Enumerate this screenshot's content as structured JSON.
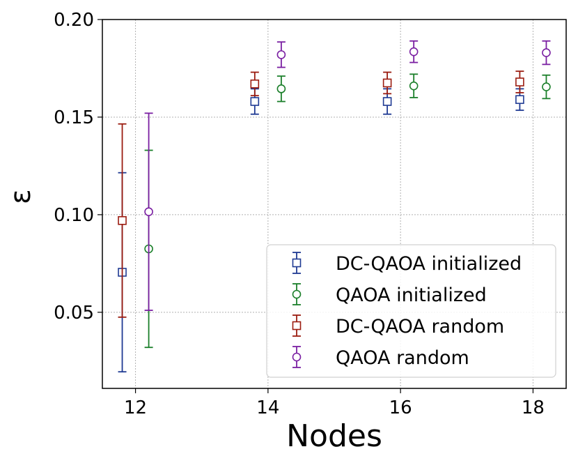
{
  "chart_data": {
    "type": "scatter",
    "title": "",
    "xlabel": "Nodes",
    "ylabel": "ε",
    "xlim": [
      11.5,
      18.5
    ],
    "ylim": [
      0.011,
      0.2
    ],
    "xticks": [
      12,
      14,
      16,
      18
    ],
    "yticks": [
      0.05,
      0.1,
      0.15,
      0.2
    ],
    "xtick_labels": [
      "12",
      "14",
      "16",
      "18"
    ],
    "ytick_labels": [
      "0.05",
      "0.10",
      "0.15",
      "0.20"
    ],
    "grid": true,
    "legend_position": "lower-right",
    "series": [
      {
        "name": "DC-QAOA initialized",
        "color": "#1f3a93",
        "marker": "square",
        "x": [
          11.8,
          13.8,
          15.8,
          17.8
        ],
        "y": [
          0.0705,
          0.158,
          0.158,
          0.159
        ],
        "err": [
          0.051,
          0.0065,
          0.0065,
          0.0055
        ]
      },
      {
        "name": "QAOA initialized",
        "color": "#1b7f2a",
        "marker": "circle",
        "x": [
          12.2,
          14.2,
          16.2,
          18.2
        ],
        "y": [
          0.0825,
          0.1645,
          0.166,
          0.1655
        ],
        "err": [
          0.0505,
          0.0065,
          0.006,
          0.006
        ]
      },
      {
        "name": "DC-QAOA random",
        "color": "#9b1c10",
        "marker": "square",
        "x": [
          11.8,
          13.8,
          15.8,
          17.8
        ],
        "y": [
          0.097,
          0.167,
          0.1675,
          0.168
        ],
        "err": [
          0.0495,
          0.006,
          0.0055,
          0.0055
        ]
      },
      {
        "name": "QAOA random",
        "color": "#7a1fa2",
        "marker": "circle",
        "x": [
          12.2,
          14.2,
          16.2,
          18.2
        ],
        "y": [
          0.1015,
          0.182,
          0.1835,
          0.183
        ],
        "err": [
          0.0505,
          0.0065,
          0.0055,
          0.006
        ]
      }
    ]
  }
}
